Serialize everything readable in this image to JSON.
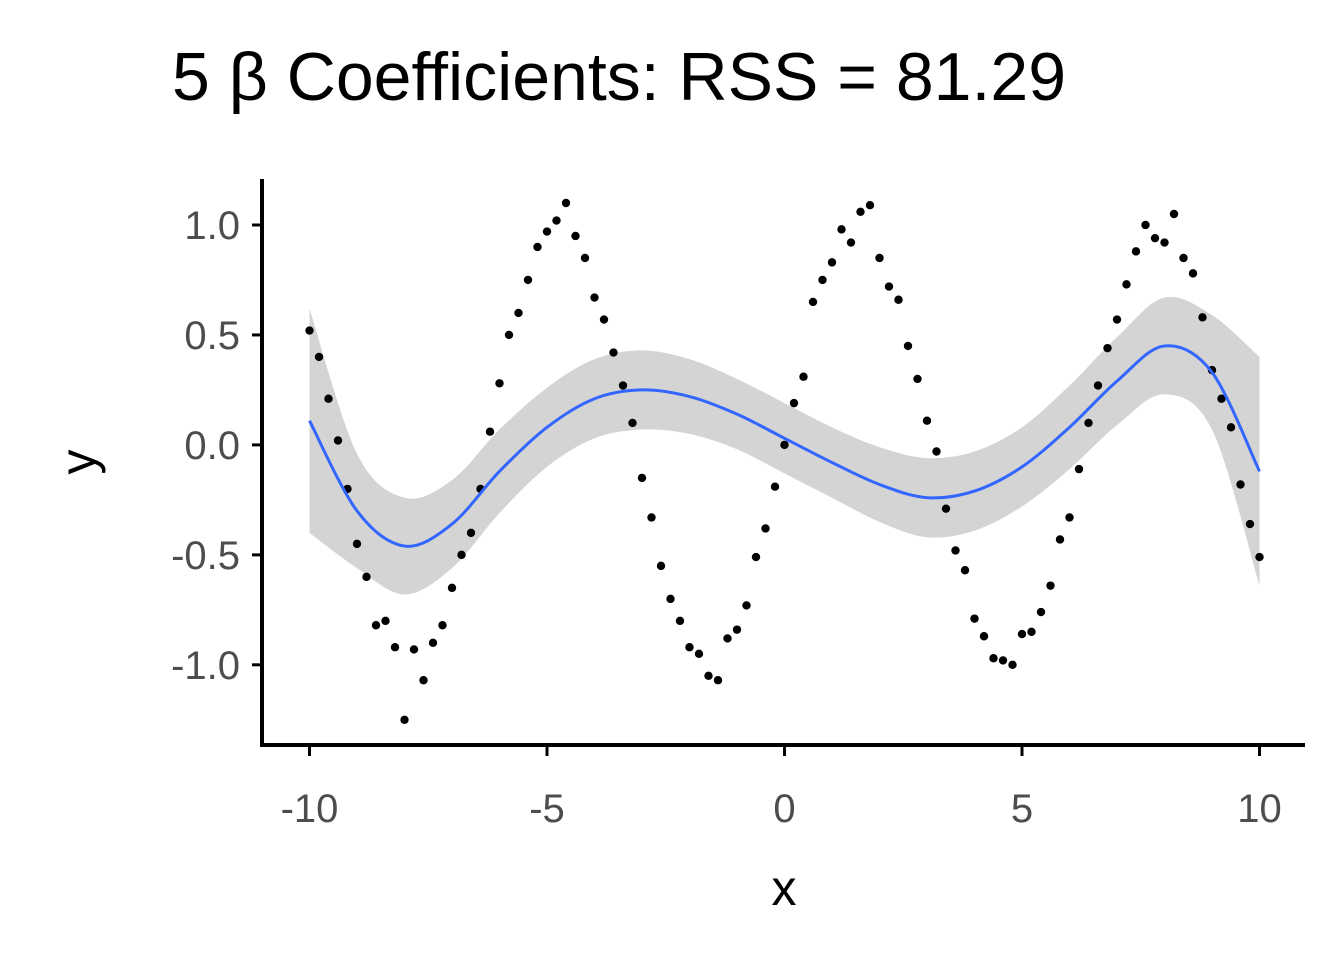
{
  "chart_data": {
    "type": "scatter",
    "title": "5 β Coefficients: RSS = 81.29",
    "x_label": "x",
    "y_label": "y",
    "xlim": [
      -11,
      11
    ],
    "ylim": [
      -1.36,
      1.2
    ],
    "xticks": [
      -10,
      -5,
      0,
      5,
      10
    ],
    "yticks": [
      {
        "value": 1,
        "label": "1.0"
      },
      {
        "value": 0.5,
        "label": "0.5"
      },
      {
        "value": 0,
        "label": "0.0"
      },
      {
        "value": -0.5,
        "label": "-0.5"
      },
      {
        "value": -1,
        "label": "-1.0"
      }
    ],
    "color": "#000000",
    "x": [
      -10,
      -9.8,
      -9.6,
      -9.4,
      -9.2,
      -9,
      -8.8,
      -8.6,
      -8.4,
      -8.2,
      -8,
      -7.8,
      -7.6,
      -7.4,
      -7.2,
      -7,
      -6.8,
      -6.6,
      -6.4,
      -6.2,
      -6,
      -5.8,
      -5.6,
      -5.4,
      -5.2,
      -5,
      -4.8,
      -4.6,
      -4.4,
      -4.2,
      -4,
      -3.8,
      -3.6,
      -3.4,
      -3.2,
      -3,
      -2.8,
      -2.6,
      -2.4,
      -2.2,
      -2,
      -1.8,
      -1.6,
      -1.4,
      -1.2,
      -1,
      -0.8,
      -0.6,
      -0.4,
      -0.2,
      0,
      0.2,
      0.4,
      0.6,
      0.8,
      1,
      1.2,
      1.4,
      1.6,
      1.8,
      2,
      2.2,
      2.4,
      2.6,
      2.8,
      3,
      3.2,
      3.4,
      3.6,
      3.8,
      4,
      4.2,
      4.4,
      4.6,
      4.8,
      5,
      5.2,
      5.4,
      5.6,
      5.8,
      6,
      6.2,
      6.4,
      6.6,
      6.8,
      7,
      7.2,
      7.4,
      7.6,
      7.8,
      8,
      8.2,
      8.4,
      8.6,
      8.8,
      9,
      9.2,
      9.4,
      9.6,
      9.8,
      10
    ],
    "values": [
      0.52,
      0.4,
      0.21,
      0.02,
      -0.2,
      -0.45,
      -0.6,
      -0.82,
      -0.8,
      -0.92,
      -1.25,
      -0.93,
      -1.07,
      -0.9,
      -0.82,
      -0.65,
      -0.5,
      -0.4,
      -0.2,
      0.06,
      0.28,
      0.5,
      0.6,
      0.75,
      0.9,
      0.97,
      1.02,
      1.1,
      0.95,
      0.85,
      0.67,
      0.57,
      0.42,
      0.27,
      0.1,
      -0.15,
      -0.33,
      -0.55,
      -0.7,
      -0.8,
      -0.92,
      -0.95,
      -1.05,
      -1.07,
      -0.88,
      -0.84,
      -0.73,
      -0.51,
      -0.38,
      -0.19,
      0.0,
      0.19,
      0.31,
      0.65,
      0.75,
      0.83,
      0.98,
      0.92,
      1.06,
      1.09,
      0.85,
      0.72,
      0.66,
      0.45,
      0.3,
      0.11,
      -0.03,
      -0.29,
      -0.48,
      -0.57,
      -0.79,
      -0.87,
      -0.97,
      -0.98,
      -1.0,
      -0.86,
      -0.85,
      -0.76,
      -0.64,
      -0.43,
      -0.33,
      -0.11,
      0.1,
      0.27,
      0.44,
      0.57,
      0.73,
      0.88,
      1.0,
      0.94,
      0.92,
      1.05,
      0.85,
      0.78,
      0.58,
      0.34,
      0.21,
      0.08,
      -0.18,
      -0.36,
      -0.51
    ],
    "fit": {
      "color": "#3366ff",
      "band_color": "#cccccc",
      "x": [
        -10,
        -9,
        -8,
        -7,
        -6,
        -5,
        -4,
        -3,
        -2,
        -1,
        0,
        1,
        2,
        3,
        4,
        5,
        6,
        7,
        8,
        9,
        10
      ],
      "values": [
        0.11,
        -0.3,
        -0.46,
        -0.36,
        -0.12,
        0.08,
        0.21,
        0.25,
        0.22,
        0.14,
        0.03,
        -0.08,
        -0.18,
        -0.24,
        -0.21,
        -0.1,
        0.08,
        0.29,
        0.45,
        0.33,
        -0.12
      ],
      "lower": [
        -0.4,
        -0.56,
        -0.68,
        -0.56,
        -0.31,
        -0.1,
        0.03,
        0.07,
        0.05,
        -0.02,
        -0.13,
        -0.24,
        -0.35,
        -0.42,
        -0.39,
        -0.28,
        -0.11,
        0.09,
        0.23,
        0.07,
        -0.64
      ],
      "upper": [
        0.62,
        -0.04,
        -0.24,
        -0.16,
        0.07,
        0.26,
        0.39,
        0.43,
        0.39,
        0.3,
        0.19,
        0.08,
        -0.01,
        -0.06,
        -0.03,
        0.08,
        0.27,
        0.49,
        0.67,
        0.59,
        0.4
      ]
    }
  }
}
